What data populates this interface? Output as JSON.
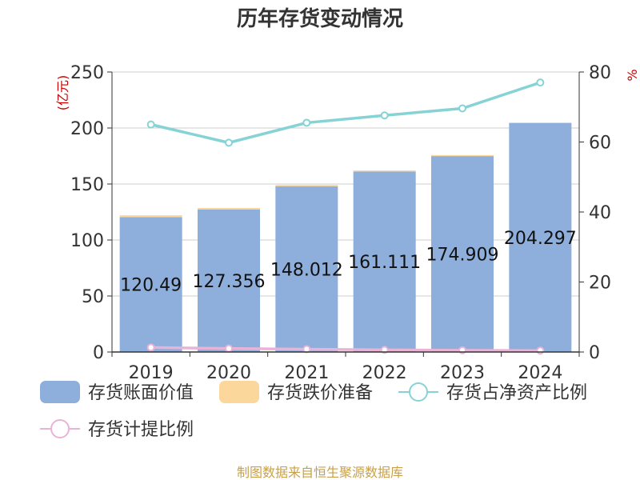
{
  "chart_data": {
    "type": "bar",
    "title": "历年存货变动情况",
    "y_left_unit": "(亿元)",
    "y_right_unit": "%",
    "categories": [
      "2019",
      "2020",
      "2021",
      "2022",
      "2023",
      "2024"
    ],
    "ylim_left": [
      0,
      250
    ],
    "yticks_left": [
      0,
      50,
      100,
      150,
      200,
      250
    ],
    "ylim_right": [
      0,
      80
    ],
    "yticks_right": [
      0,
      20,
      40,
      60,
      80
    ],
    "grid": true,
    "legend_position": "bottom",
    "series": [
      {
        "name": "存货账面价值",
        "kind": "bar",
        "axis": "left",
        "color": "#8eaedb",
        "values": [
          120.49,
          127.356,
          148.012,
          161.111,
          174.909,
          204.297
        ],
        "labels": [
          "120.49",
          "127.356",
          "148.012",
          "161.111",
          "174.909",
          "204.297"
        ]
      },
      {
        "name": "存货跌价准备",
        "kind": "bar",
        "axis": "left",
        "color": "#fcd79c",
        "values": [
          1.6,
          1.3,
          1.2,
          1.0,
          0.9,
          0.7
        ]
      },
      {
        "name": "存货占净资产比例",
        "kind": "line",
        "axis": "right",
        "color": "#86d3d6",
        "values": [
          65.0,
          59.8,
          65.5,
          67.6,
          69.6,
          77.0
        ]
      },
      {
        "name": "存货计提比例",
        "kind": "line",
        "axis": "right",
        "color": "#e8b4d6",
        "values": [
          1.3,
          1.0,
          0.8,
          0.6,
          0.5,
          0.4
        ]
      }
    ]
  },
  "source_text": "制图数据来自恒生聚源数据库"
}
